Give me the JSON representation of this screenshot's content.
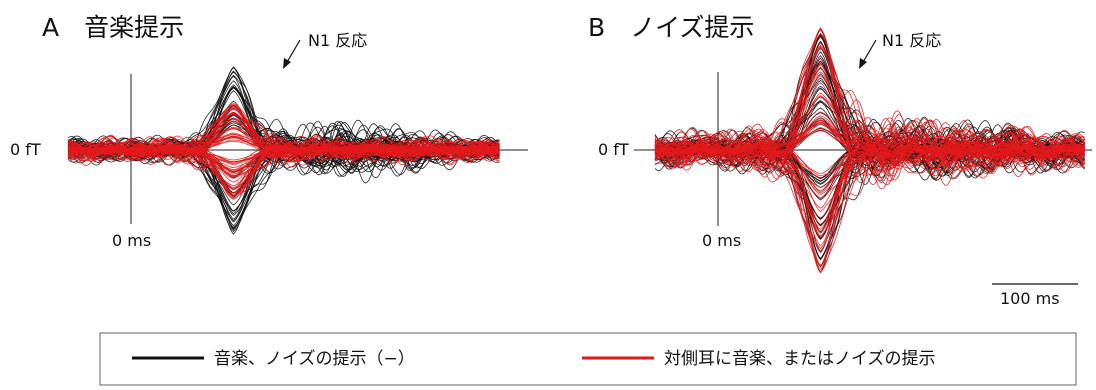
{
  "chart_data": [
    {
      "type": "line",
      "title": "A　音楽提示",
      "annotation": "N1 反応",
      "y_zero_label": "0 fT",
      "x_zero_label": "0 ms",
      "series": [
        {
          "legend": "音楽、ノイズの提示（−）",
          "color": "#111111",
          "trace_count": 60,
          "envelope": {
            "t_ms": [
              -80,
              0,
              60,
              110,
              170,
              220,
              300,
              370
            ],
            "relative_amplitude": [
              0.3,
              0.3,
              0.3,
              1.0,
              0.45,
              0.75,
              0.5,
              0.3
            ]
          }
        },
        {
          "legend": "対側耳に音楽、またはノイズの提示",
          "color": "#e3191c",
          "trace_count": 60,
          "envelope": {
            "t_ms": [
              -80,
              0,
              60,
              110,
              170,
              220,
              300,
              370
            ],
            "relative_amplitude": [
              0.3,
              0.3,
              0.35,
              0.6,
              0.35,
              0.3,
              0.3,
              0.3
            ]
          }
        }
      ]
    },
    {
      "type": "line",
      "title": "B　ノイズ提示",
      "annotation": "N1 反応",
      "y_zero_label": "0 fT",
      "x_zero_label": "0 ms",
      "series": [
        {
          "legend": "音楽、ノイズの提示（−）",
          "color": "#111111",
          "trace_count": 60,
          "envelope": {
            "t_ms": [
              -80,
              0,
              60,
              110,
              170,
              220,
              300,
              370
            ],
            "relative_amplitude": [
              0.3,
              0.3,
              0.4,
              1.0,
              0.45,
              0.5,
              0.45,
              0.3
            ]
          }
        },
        {
          "legend": "対側耳に音楽、またはノイズの提示",
          "color": "#e3191c",
          "trace_count": 60,
          "envelope": {
            "t_ms": [
              -80,
              0,
              60,
              110,
              170,
              220,
              300,
              370
            ],
            "relative_amplitude": [
              0.3,
              0.3,
              0.45,
              1.0,
              0.55,
              0.5,
              0.4,
              0.3
            ]
          }
        }
      ]
    }
  ],
  "scale_bar": {
    "label": "100 ms",
    "value_ms": 100
  },
  "legend": {
    "black_label": "音楽、ノイズの提示（−）",
    "red_label": "対側耳に音楽、またはノイズの提示",
    "black_color": "#111111",
    "red_color": "#e3191c"
  }
}
